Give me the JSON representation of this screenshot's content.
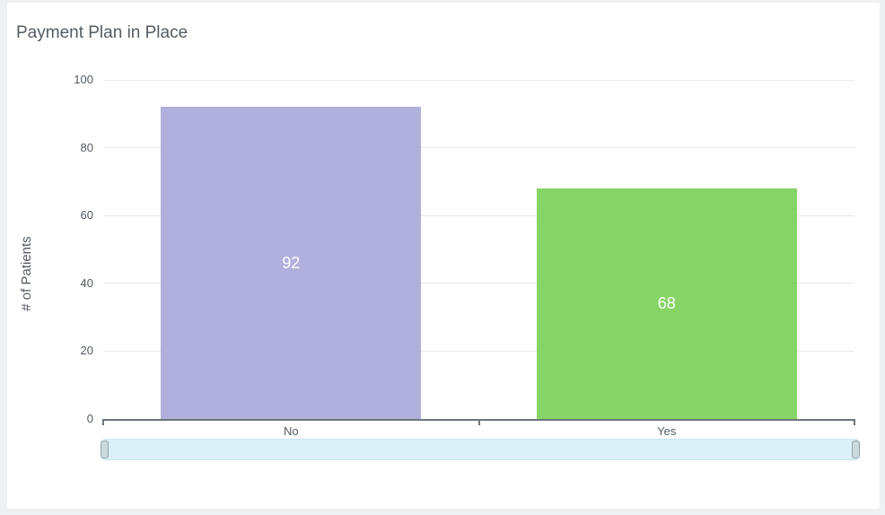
{
  "card": {
    "title": "Payment Plan in Place"
  },
  "chart_data": {
    "type": "bar",
    "title": "Payment Plan in Place",
    "categories": [
      "No",
      "Yes"
    ],
    "values": [
      92,
      68
    ],
    "value_labels": [
      "92",
      "68"
    ],
    "bar_colors": [
      "#b1afdb",
      "#86d465"
    ],
    "value_label_color": "#ffffff",
    "xlabel": "",
    "ylabel": "# of Patients",
    "ylim": [
      0,
      100
    ],
    "ytick_step": 20,
    "yticks": [
      0,
      20,
      40,
      60,
      80,
      100
    ],
    "grid": true,
    "legend": false,
    "bar_width_ratio": 0.693,
    "navigator_scrollbar": true
  },
  "colors": {
    "page_bg": "#eef0f2",
    "card_bg": "#ffffff",
    "title_text": "#545b64",
    "axis_text": "#545b64",
    "axis_line": "#6d757d",
    "gridline": "#e8e9eb",
    "scrollbar_track": "#daf1f8",
    "scrollbar_border": "#c6e6f0",
    "scrollbar_handle": "#ccd9de",
    "scrollbar_handle_border": "#8fa6ae"
  }
}
